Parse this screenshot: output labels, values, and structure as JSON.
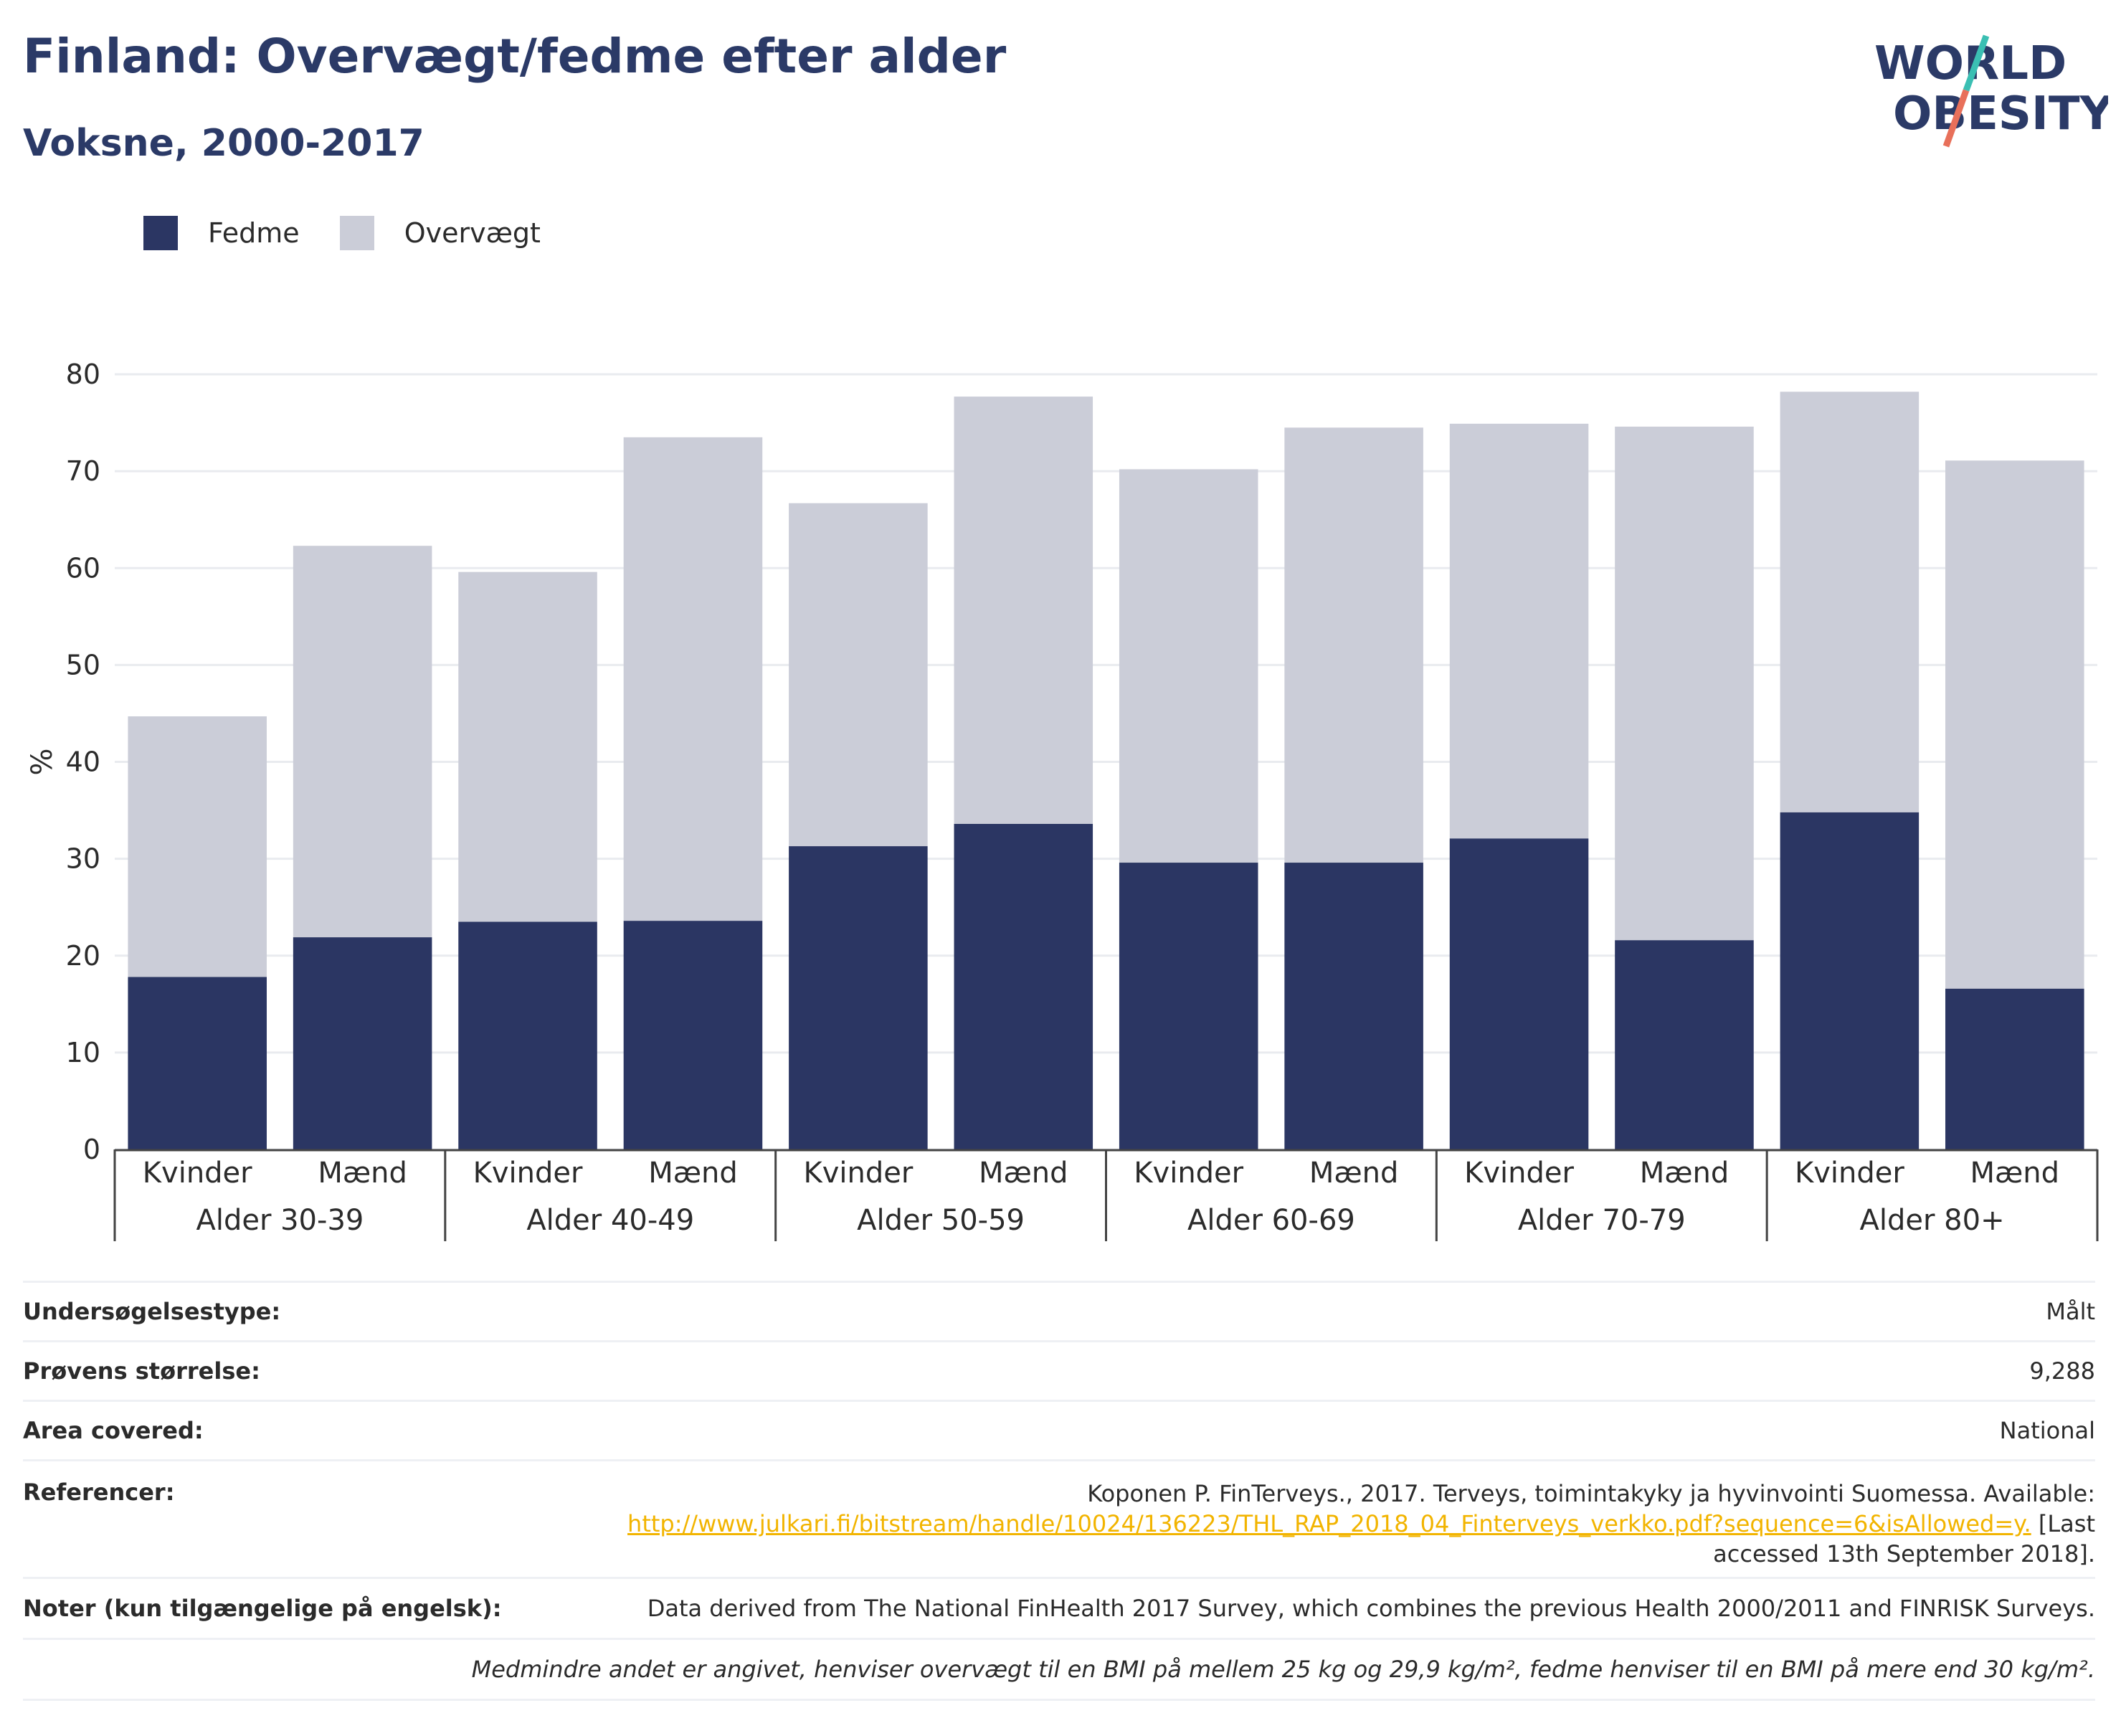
{
  "header": {
    "title": "Finland: Overvægt/fedme efter alder",
    "subtitle": "Voksne, 2000-2017",
    "logo_line1": "WORLD",
    "logo_line2": "OBESITY"
  },
  "colors": {
    "fedme": "#2b3663",
    "overvaegt": "#cbcdd8",
    "accent_teal": "#3bbfb3",
    "accent_red": "#e8705a",
    "brand": "#2b3a67",
    "link": "#f2b400"
  },
  "legend": [
    {
      "name": "Fedme",
      "color": "#2b3663"
    },
    {
      "name": "Overvægt",
      "color": "#cbcdd8"
    }
  ],
  "chart_data": {
    "type": "bar",
    "stacked": true,
    "ylabel": "%",
    "ylim": [
      0,
      80
    ],
    "yticks": [
      0,
      10,
      20,
      30,
      40,
      50,
      60,
      70,
      80
    ],
    "grid": true,
    "legend_position": "top-left",
    "groups": [
      "Alder 30-39",
      "Alder 40-49",
      "Alder 50-59",
      "Alder 60-69",
      "Alder 70-79",
      "Alder 80+"
    ],
    "categories": [
      "Kvinder",
      "Mænd",
      "Kvinder",
      "Mænd",
      "Kvinder",
      "Mænd",
      "Kvinder",
      "Mænd",
      "Kvinder",
      "Mænd",
      "Kvinder",
      "Mænd"
    ],
    "series": [
      {
        "name": "Fedme",
        "values": [
          17.8,
          21.9,
          23.5,
          23.6,
          31.3,
          33.6,
          29.6,
          29.6,
          32.1,
          21.6,
          34.8,
          16.6
        ]
      },
      {
        "name": "Overvægt",
        "values": [
          26.9,
          40.4,
          36.1,
          49.9,
          35.4,
          44.1,
          40.6,
          44.9,
          42.8,
          53.0,
          43.4,
          54.5
        ]
      }
    ]
  },
  "info": {
    "survey_type_label": "Undersøgelsestype:",
    "survey_type_value": "Målt",
    "sample_size_label": "Prøvens størrelse:",
    "sample_size_value": "9,288",
    "area_label": "Area covered:",
    "area_value": "National",
    "references_label": "Referencer:",
    "references_text1": "Koponen P. FinTerveys., 2017. Terveys, toimintakyky ja hyvinvointi Suomessa. Available:",
    "references_link": "http://www.julkari.fi/bitstream/handle/10024/136223/THL_RAP_2018_04_Finterveys_verkko.pdf?sequence=6&isAllowed=y.",
    "references_text2": "[Last",
    "references_text3": "accessed 13th September 2018].",
    "notes_label": "Noter (kun tilgængelige på engelsk):",
    "notes_value": "Data derived from The National FinHealth 2017 Survey, which combines the previous Health 2000/2011 and FINRISK Surveys.",
    "definition": "Medmindre andet er angivet, henviser overvægt til en BMI på mellem 25 kg og 29,9 kg/m², fedme henviser til en BMI på mere end 30 kg/m²."
  }
}
